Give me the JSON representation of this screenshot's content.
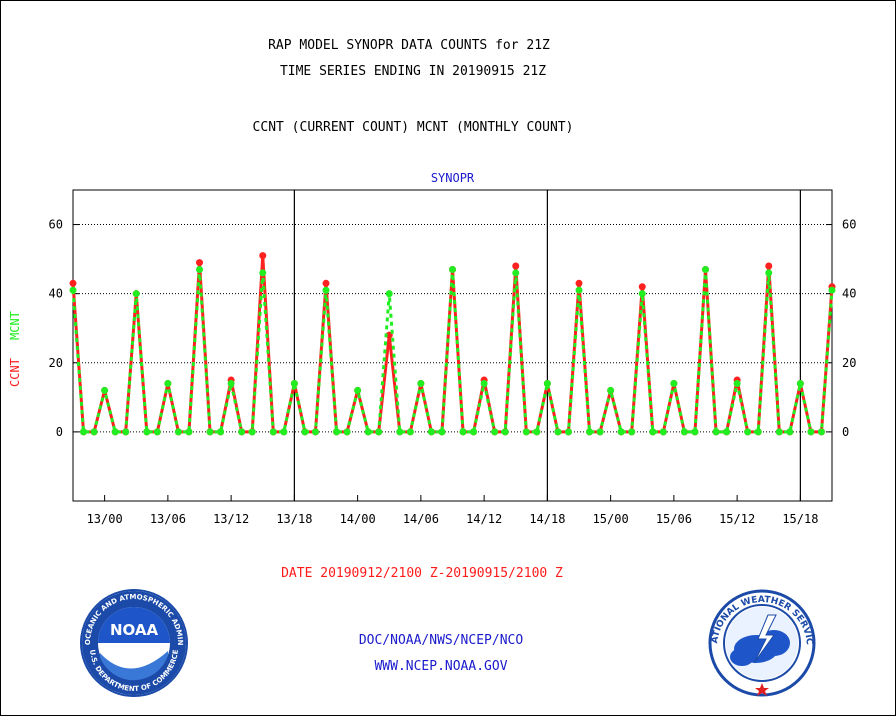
{
  "header": {
    "line1": "RAP MODEL SYNOPR DATA COUNTS for 21Z",
    "line2": "TIME SERIES ENDING IN 20190915 21Z",
    "line3": "CCNT (CURRENT COUNT) MCNT (MONTHLY COUNT)"
  },
  "footer": {
    "date_range": "DATE 20190912/2100 Z-20190915/2100 Z",
    "org": "DOC/NOAA/NWS/NCEP/NCO",
    "url": "WWW.NCEP.NOAA.GOV"
  },
  "logos": {
    "left_icon": "noaa-logo-icon",
    "right_icon": "nws-logo-icon",
    "left_center_text": "NOAA",
    "left_ring_text": "NATIONAL OCEANIC AND ATMOSPHERIC ADMINISTRATION",
    "left_ring_text_bottom": "U.S. DEPARTMENT OF COMMERCE",
    "right_ring_text": "NATIONAL WEATHER SERVICE"
  },
  "colors": {
    "ccnt": "#ff2020",
    "mcnt": "#20ee20",
    "title_blue": "#1a1acc",
    "date_red": "#ff1a1a"
  },
  "chart_data": {
    "type": "line",
    "title": "SYNOPR",
    "ylabel_ccnt": "CCNT",
    "ylabel_mcnt": "MCNT",
    "ylim": [
      -20,
      70
    ],
    "yticks": [
      0,
      20,
      40,
      60
    ],
    "grid": true,
    "x_tick_labels": [
      "13/00",
      "13/06",
      "13/12",
      "13/18",
      "14/00",
      "14/06",
      "14/12",
      "14/18",
      "15/00",
      "15/06",
      "15/12",
      "15/18"
    ],
    "x_tick_hours": [
      3,
      9,
      15,
      21,
      27,
      33,
      39,
      45,
      51,
      57,
      63,
      69
    ],
    "day_boundaries_hours": [
      21,
      45,
      69
    ],
    "x_start": "20190912/2100",
    "x_end": "20190915/2100",
    "series": [
      {
        "name": "CCNT",
        "values": [
          43,
          0,
          0,
          12,
          0,
          0,
          40,
          0,
          0,
          14,
          0,
          0,
          49,
          0,
          0,
          15,
          0,
          0,
          51,
          0,
          0,
          14,
          0,
          0,
          43,
          0,
          0,
          12,
          0,
          0,
          28,
          0,
          0,
          14,
          0,
          0,
          47,
          0,
          0,
          15,
          0,
          0,
          48,
          0,
          0,
          14,
          0,
          0,
          43,
          0,
          0,
          12,
          0,
          0,
          42,
          0,
          0,
          14,
          0,
          0,
          47,
          0,
          0,
          15,
          0,
          0,
          48,
          0,
          0,
          14,
          0,
          0,
          42
        ]
      },
      {
        "name": "MCNT",
        "values": [
          41,
          0,
          0,
          12,
          0,
          0,
          40,
          0,
          0,
          14,
          0,
          0,
          47,
          0,
          0,
          14,
          0,
          0,
          46,
          0,
          0,
          14,
          0,
          0,
          41,
          0,
          0,
          12,
          0,
          0,
          40,
          0,
          0,
          14,
          0,
          0,
          47,
          0,
          0,
          14,
          0,
          0,
          46,
          0,
          0,
          14,
          0,
          0,
          41,
          0,
          0,
          12,
          0,
          0,
          40,
          0,
          0,
          14,
          0,
          0,
          47,
          0,
          0,
          14,
          0,
          0,
          46,
          0,
          0,
          14,
          0,
          0,
          41
        ]
      }
    ]
  }
}
